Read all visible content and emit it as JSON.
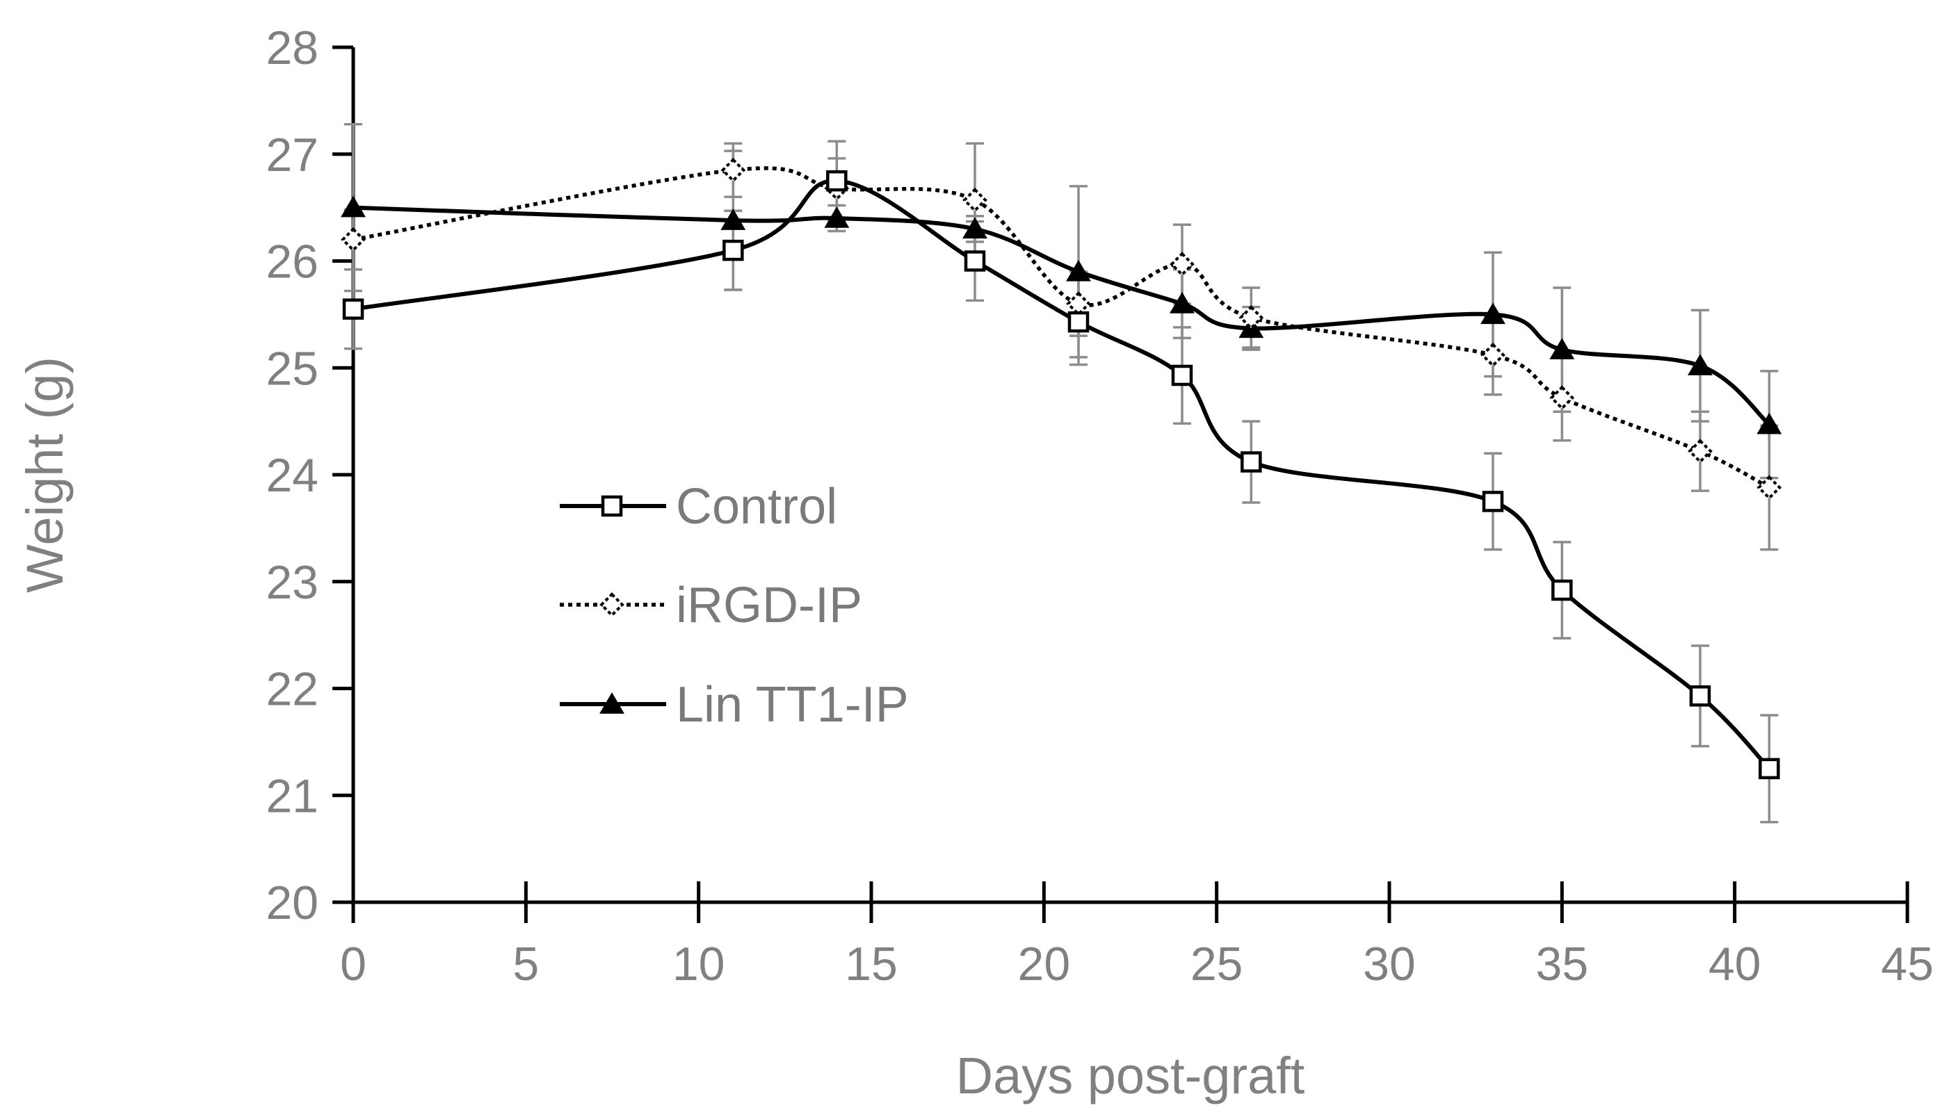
{
  "chart_data": {
    "type": "line",
    "title": "",
    "xlabel": "Days post-graft",
    "ylabel": "Weight (g)",
    "xlim": [
      0,
      45
    ],
    "ylim": [
      20,
      28
    ],
    "xticks": [
      0,
      5,
      10,
      15,
      20,
      25,
      30,
      35,
      40,
      45
    ],
    "yticks": [
      20,
      21,
      22,
      23,
      24,
      25,
      26,
      27,
      28
    ],
    "legend_position": "center-left",
    "colors": {
      "axis": "#000000",
      "text": "#808080",
      "errorbar": "#8c8c8c",
      "line": "#000000"
    },
    "series": [
      {
        "name": "Control",
        "marker": "square-open",
        "line": "solid",
        "x": [
          0,
          11,
          14,
          18,
          21,
          24,
          26,
          33,
          35,
          39,
          41
        ],
        "y": [
          25.55,
          26.1,
          26.75,
          26.0,
          25.43,
          24.93,
          24.12,
          23.75,
          22.92,
          21.93,
          21.25
        ],
        "err": [
          0.37,
          0.37,
          0.37,
          0.37,
          0.4,
          0.45,
          0.38,
          0.45,
          0.45,
          0.47,
          0.5
        ]
      },
      {
        "name": "iRGD-IP",
        "marker": "diamond-open",
        "line": "dotted",
        "x": [
          0,
          11,
          14,
          18,
          21,
          24,
          26,
          33,
          35,
          39,
          41
        ],
        "y": [
          26.2,
          26.85,
          26.68,
          26.57,
          25.6,
          25.97,
          25.47,
          25.12,
          24.72,
          24.22,
          23.88
        ],
        "err": [
          0.28,
          0.25,
          0.28,
          0.53,
          0.3,
          0.37,
          0.28,
          0.37,
          0.4,
          0.37,
          0.58
        ]
      },
      {
        "name": "Lin TT1-IP",
        "marker": "triangle-filled",
        "line": "solid",
        "x": [
          0,
          11,
          14,
          18,
          21,
          24,
          26,
          33,
          35,
          39,
          41
        ],
        "y": [
          26.5,
          26.38,
          26.4,
          26.3,
          25.9,
          25.6,
          25.37,
          25.5,
          25.17,
          25.02,
          24.47
        ],
        "err": [
          0.78,
          0.65,
          0.12,
          0.12,
          0.8,
          0.32,
          0.2,
          0.58,
          0.58,
          0.52,
          0.5
        ]
      }
    ]
  }
}
